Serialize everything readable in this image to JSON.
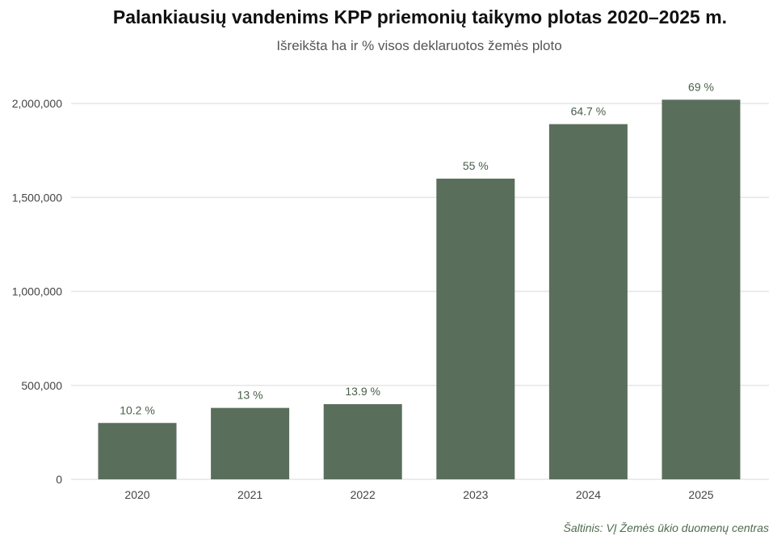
{
  "chart_data": {
    "type": "bar",
    "title": "Palankiausių vandenims KPP priemonių taikymo plotas 2020–2025 m.",
    "subtitle": "Išreikšta ha ir % visos deklaruotos žemės ploto",
    "source": "Šaltinis: VĮ Žemės ūkio duomenų centras",
    "categories": [
      "2020",
      "2021",
      "2022",
      "2023",
      "2024",
      "2025"
    ],
    "values": [
      300000,
      380000,
      400000,
      1600000,
      1890000,
      2020000
    ],
    "data_labels": [
      "10.2 %",
      "13 %",
      "13.9 %",
      "55 %",
      "64.7 %",
      "69 %"
    ],
    "ylim": [
      0,
      2000000
    ],
    "yticks": [
      0,
      500000,
      1000000,
      1500000,
      2000000
    ],
    "ytick_labels": [
      "0",
      "500,000",
      "1,000,000",
      "1,500,000",
      "2,000,000"
    ],
    "xlabel": "",
    "ylabel": "",
    "grid": "horizontal",
    "bar_color": "#5a6e5c",
    "gridline_color": "#e6e6e6"
  }
}
